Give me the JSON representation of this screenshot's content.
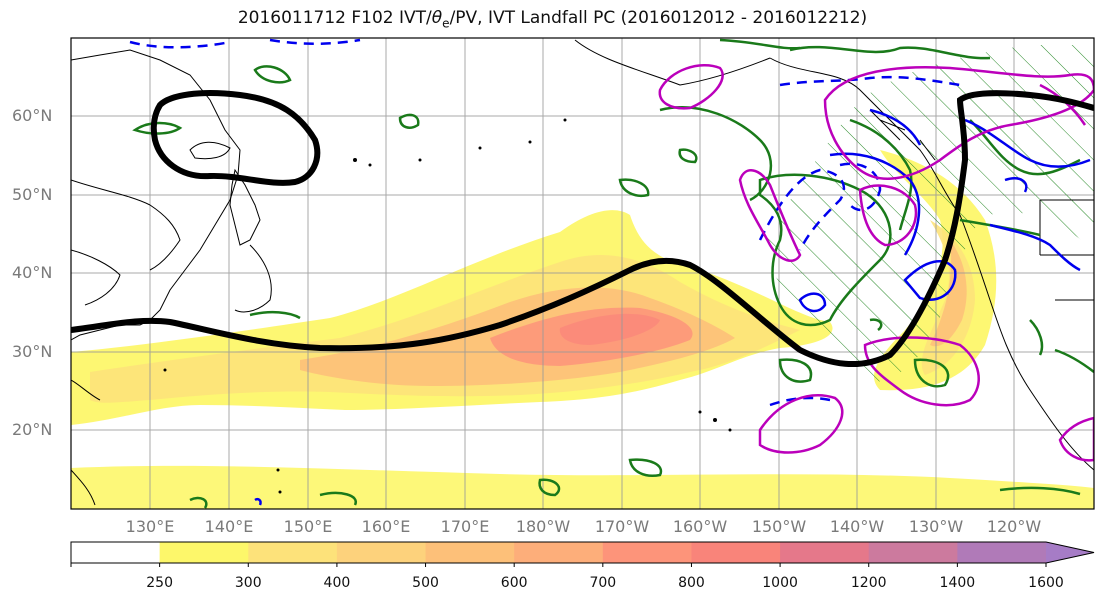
{
  "title": {
    "prefix": "2016011712 F102 IVT/",
    "theta": "θ",
    "theta_sub": "e",
    "suffix": "/PV, IVT Landfall PC (2016012012 - 2016012212)"
  },
  "map": {
    "lat_labels": [
      "60°N",
      "50°N",
      "40°N",
      "30°N",
      "20°N"
    ],
    "lon_labels": [
      "130°E",
      "140°E",
      "150°E",
      "160°E",
      "170°E",
      "180°W",
      "170°W",
      "160°W",
      "150°W",
      "140°W",
      "130°W",
      "120°W"
    ],
    "colors": {
      "pc_contour": "#000000",
      "theta_e_contour": "#0000ee",
      "pv_contour": "#bb00bb",
      "green_contour": "#1a7a1a",
      "hatch": "#2a8a2a",
      "coast": "#000000",
      "grid": "#999999"
    }
  },
  "colorbar": {
    "levels": [
      "250",
      "300",
      "400",
      "500",
      "600",
      "700",
      "800",
      "1000",
      "1200",
      "1400",
      "1600"
    ],
    "colors": [
      "#ffffff",
      "#fdf76a",
      "#fde27a",
      "#fdd27c",
      "#fdc079",
      "#fdae7a",
      "#fd947a",
      "#f9847a",
      "#e5788a",
      "#cc7a9e",
      "#b07ab8",
      "#a67cc6"
    ],
    "extend": "max"
  }
}
